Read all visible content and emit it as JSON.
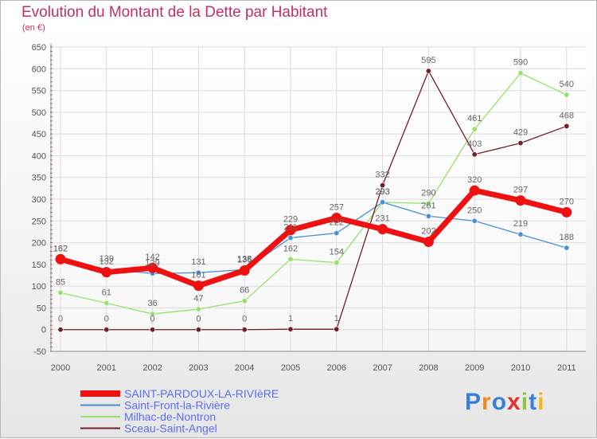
{
  "title": "Evolution du Montant de la Dette par Habitant",
  "subtitle": "(en €)",
  "brand": "Proxiti",
  "colors": {
    "title": "#c0306a",
    "legend_text": "#5a6ef0",
    "brand": [
      "#3a7fd6",
      "#f08a1c",
      "#3a7fd6",
      "#e3302f",
      "#8cc63f",
      "#3a7fd6",
      "#f0b81c"
    ]
  },
  "chart_data": {
    "type": "line",
    "title": "Evolution du Montant de la Dette par Habitant",
    "ylabel": "(en €)",
    "xlabel": "",
    "ylim": [
      -50,
      650
    ],
    "ytick_step": 50,
    "grid": true,
    "categories": [
      "2000",
      "2001",
      "2002",
      "2003",
      "2004",
      "2005",
      "2006",
      "2007",
      "2008",
      "2009",
      "2010",
      "2011"
    ],
    "series": [
      {
        "name": "Milhac-de-Nontron",
        "color": "#98e06a",
        "values": [
          85,
          61,
          36,
          47,
          66,
          162,
          154,
          293,
          290,
          461,
          590,
          540
        ]
      },
      {
        "name": "Saint-Front-la-Rivière",
        "color": "#4a90d4",
        "values": [
          162,
          139,
          129,
          131,
          138,
          211,
          222,
          293,
          261,
          250,
          219,
          188
        ]
      },
      {
        "name": "Sceau-Saint-Angel",
        "color": "#6e1f28",
        "values": [
          0,
          0,
          0,
          0,
          0,
          1,
          1,
          332,
          595,
          403,
          429,
          468
        ]
      },
      {
        "name": "SAINT-PARDOUX-LA-RIVIèRE",
        "color": "#ee1111",
        "values": [
          162,
          132,
          142,
          101,
          136,
          229,
          257,
          231,
          202,
          320,
          297,
          270
        ]
      }
    ],
    "legend_order": [
      "SAINT-PARDOUX-LA-RIVIèRE",
      "Saint-Front-la-Rivière",
      "Milhac-de-Nontron",
      "Sceau-Saint-Angel"
    ],
    "legend_position": "bottom-left"
  }
}
